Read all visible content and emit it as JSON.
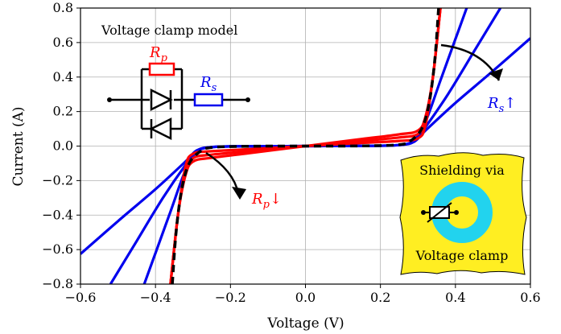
{
  "chart_data": {
    "type": "line",
    "title": "",
    "xlabel": "Voltage (V)",
    "ylabel": "Current (A)",
    "xlim": [
      -0.6,
      0.6
    ],
    "ylim": [
      -0.8,
      0.8
    ],
    "xticks": [
      -0.6,
      -0.4,
      -0.2,
      0.0,
      0.2,
      0.4,
      0.6
    ],
    "yticks": [
      -0.8,
      -0.6,
      -0.4,
      -0.2,
      0.0,
      0.2,
      0.4,
      0.6,
      0.8
    ],
    "xtick_labels": [
      "−0.6",
      "−0.4",
      "−0.2",
      "0.0",
      "0.2",
      "0.4",
      "0.6"
    ],
    "ytick_labels": [
      "−0.8",
      "−0.6",
      "−0.4",
      "−0.2",
      "0.0",
      "0.2",
      "0.4",
      "0.6",
      "0.8"
    ],
    "grid": true,
    "series_colors": {
      "series_rs": "#0000ee",
      "series_rp": "#ff0000",
      "series_ideal": "#000000"
    },
    "series": [
      {
        "group": "Rs",
        "color": "#0000ee",
        "points": [
          [
            -0.6,
            -0.625
          ],
          [
            -0.5,
            -0.435
          ],
          [
            -0.4,
            -0.25
          ],
          [
            -0.32,
            -0.09
          ],
          [
            -0.29,
            -0.025
          ],
          [
            -0.25,
            -0.006
          ],
          [
            -0.15,
            -0.001
          ],
          [
            0,
            0
          ],
          [
            0.15,
            0.001
          ],
          [
            0.25,
            0.006
          ],
          [
            0.29,
            0.025
          ],
          [
            0.32,
            0.09
          ],
          [
            0.4,
            0.25
          ],
          [
            0.5,
            0.435
          ],
          [
            0.6,
            0.625
          ]
        ]
      },
      {
        "group": "Rs",
        "color": "#0000ee",
        "points": [
          [
            -0.52,
            -0.8
          ],
          [
            -0.45,
            -0.55
          ],
          [
            -0.38,
            -0.3
          ],
          [
            -0.32,
            -0.11
          ],
          [
            -0.29,
            -0.03
          ],
          [
            -0.25,
            -0.006
          ],
          [
            -0.15,
            -0.001
          ],
          [
            0,
            0
          ],
          [
            0.15,
            0.001
          ],
          [
            0.25,
            0.006
          ],
          [
            0.29,
            0.03
          ],
          [
            0.32,
            0.11
          ],
          [
            0.38,
            0.3
          ],
          [
            0.45,
            0.55
          ],
          [
            0.52,
            0.8
          ]
        ]
      },
      {
        "group": "Rs",
        "color": "#0000ee",
        "points": [
          [
            -0.43,
            -0.8
          ],
          [
            -0.4,
            -0.62
          ],
          [
            -0.36,
            -0.38
          ],
          [
            -0.32,
            -0.14
          ],
          [
            -0.29,
            -0.035
          ],
          [
            -0.25,
            -0.006
          ],
          [
            -0.15,
            -0.001
          ],
          [
            0,
            0
          ],
          [
            0.15,
            0.001
          ],
          [
            0.25,
            0.006
          ],
          [
            0.29,
            0.035
          ],
          [
            0.32,
            0.14
          ],
          [
            0.36,
            0.38
          ],
          [
            0.4,
            0.62
          ],
          [
            0.43,
            0.8
          ]
        ]
      },
      {
        "group": "Rp",
        "color": "#ff0000",
        "points": [
          [
            -0.36,
            -0.8
          ],
          [
            -0.34,
            -0.4
          ],
          [
            -0.32,
            -0.17
          ],
          [
            -0.3,
            -0.09
          ],
          [
            -0.25,
            -0.068
          ],
          [
            -0.15,
            -0.041
          ],
          [
            0,
            0
          ],
          [
            0.15,
            0.041
          ],
          [
            0.25,
            0.068
          ],
          [
            0.3,
            0.09
          ],
          [
            0.32,
            0.17
          ],
          [
            0.34,
            0.4
          ],
          [
            0.36,
            0.8
          ]
        ]
      },
      {
        "group": "Rp",
        "color": "#ff0000",
        "points": [
          [
            -0.36,
            -0.8
          ],
          [
            -0.34,
            -0.4
          ],
          [
            -0.32,
            -0.15
          ],
          [
            -0.3,
            -0.07
          ],
          [
            -0.25,
            -0.05
          ],
          [
            -0.15,
            -0.03
          ],
          [
            0,
            0
          ],
          [
            0.15,
            0.03
          ],
          [
            0.25,
            0.05
          ],
          [
            0.3,
            0.07
          ],
          [
            0.32,
            0.15
          ],
          [
            0.34,
            0.4
          ],
          [
            0.36,
            0.8
          ]
        ]
      },
      {
        "group": "Rp",
        "color": "#ff0000",
        "points": [
          [
            -0.36,
            -0.8
          ],
          [
            -0.34,
            -0.4
          ],
          [
            -0.32,
            -0.12
          ],
          [
            -0.3,
            -0.045
          ],
          [
            -0.25,
            -0.03
          ],
          [
            -0.15,
            -0.018
          ],
          [
            0,
            0
          ],
          [
            0.15,
            0.018
          ],
          [
            0.25,
            0.03
          ],
          [
            0.3,
            0.045
          ],
          [
            0.32,
            0.12
          ],
          [
            0.34,
            0.4
          ],
          [
            0.36,
            0.8
          ]
        ]
      },
      {
        "group": "ideal",
        "color": "#000000",
        "dashed": true,
        "points": [
          [
            -0.355,
            -0.8
          ],
          [
            -0.345,
            -0.5
          ],
          [
            -0.33,
            -0.25
          ],
          [
            -0.31,
            -0.1
          ],
          [
            -0.28,
            -0.03
          ],
          [
            -0.25,
            -0.008
          ],
          [
            -0.15,
            -0.001
          ],
          [
            0,
            0
          ],
          [
            0.15,
            0.001
          ],
          [
            0.25,
            0.008
          ],
          [
            0.28,
            0.03
          ],
          [
            0.31,
            0.1
          ],
          [
            0.33,
            0.25
          ],
          [
            0.345,
            0.5
          ],
          [
            0.355,
            0.8
          ]
        ]
      }
    ],
    "annotations": {
      "model_title": "Voltage clamp model",
      "rp_symbol": "R",
      "rp_sub": "p",
      "rs_symbol": "R",
      "rs_sub": "s",
      "rs_arrow_symbol": "R",
      "rs_arrow_sub": "s",
      "rs_arrow_glyph": "↑",
      "rp_arrow_symbol": "R",
      "rp_arrow_sub": "p",
      "rp_arrow_glyph": "↓",
      "inset_line1": "Shielding via",
      "inset_line2": "Voltage clamp"
    },
    "inset_colors": {
      "panel": "#ffee22",
      "ring": "#22d3ee"
    }
  }
}
